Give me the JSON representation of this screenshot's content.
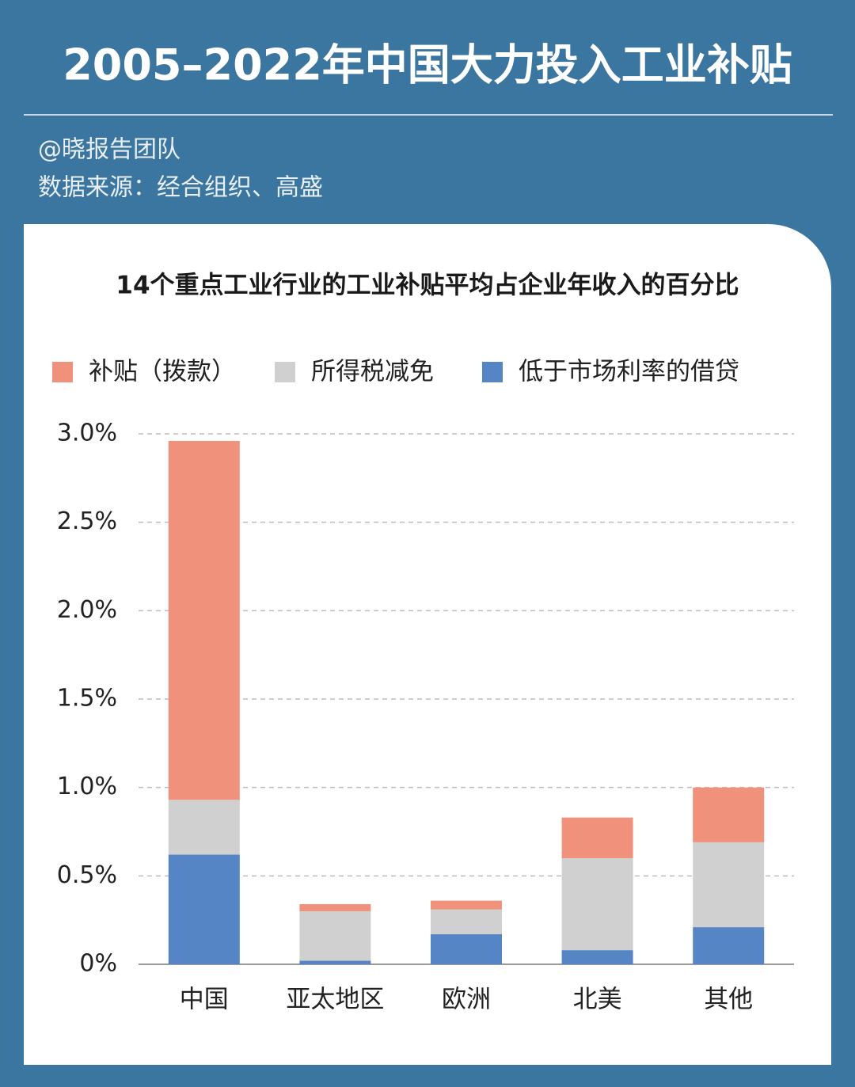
{
  "header": {
    "title": "2005–2022年中国大力投入工业补贴",
    "author": "@晓报告团队",
    "source": "数据来源：经合组织、高盛"
  },
  "chart_data": {
    "type": "stacked_bar",
    "title": "14个重点工业行业的工业补贴平均占企业年收入的百分比",
    "categories": [
      "中国",
      "亚太地区",
      "欧洲",
      "北美",
      "其他"
    ],
    "series": [
      {
        "name": "补贴（拨款）",
        "color": "#f0917b",
        "values": [
          2.03,
          0.04,
          0.05,
          0.23,
          0.31
        ]
      },
      {
        "name": "所得税减免",
        "color": "#cfd0cf",
        "values": [
          0.31,
          0.28,
          0.14,
          0.52,
          0.48
        ]
      },
      {
        "name": "低于市场利率的借贷",
        "color": "#5585c5",
        "values": [
          0.62,
          0.02,
          0.17,
          0.08,
          0.21
        ]
      }
    ],
    "ylim": [
      0,
      3
    ],
    "yticks": [
      {
        "value": 0,
        "label": "0%"
      },
      {
        "value": 0.5,
        "label": "0.5%"
      },
      {
        "value": 1,
        "label": "1.0%"
      },
      {
        "value": 1.5,
        "label": "1.5%"
      },
      {
        "value": 2,
        "label": "2.0%"
      },
      {
        "value": 2.5,
        "label": "2.5%"
      },
      {
        "value": 3,
        "label": "3.0%"
      }
    ],
    "grid": true,
    "legend": "top"
  }
}
